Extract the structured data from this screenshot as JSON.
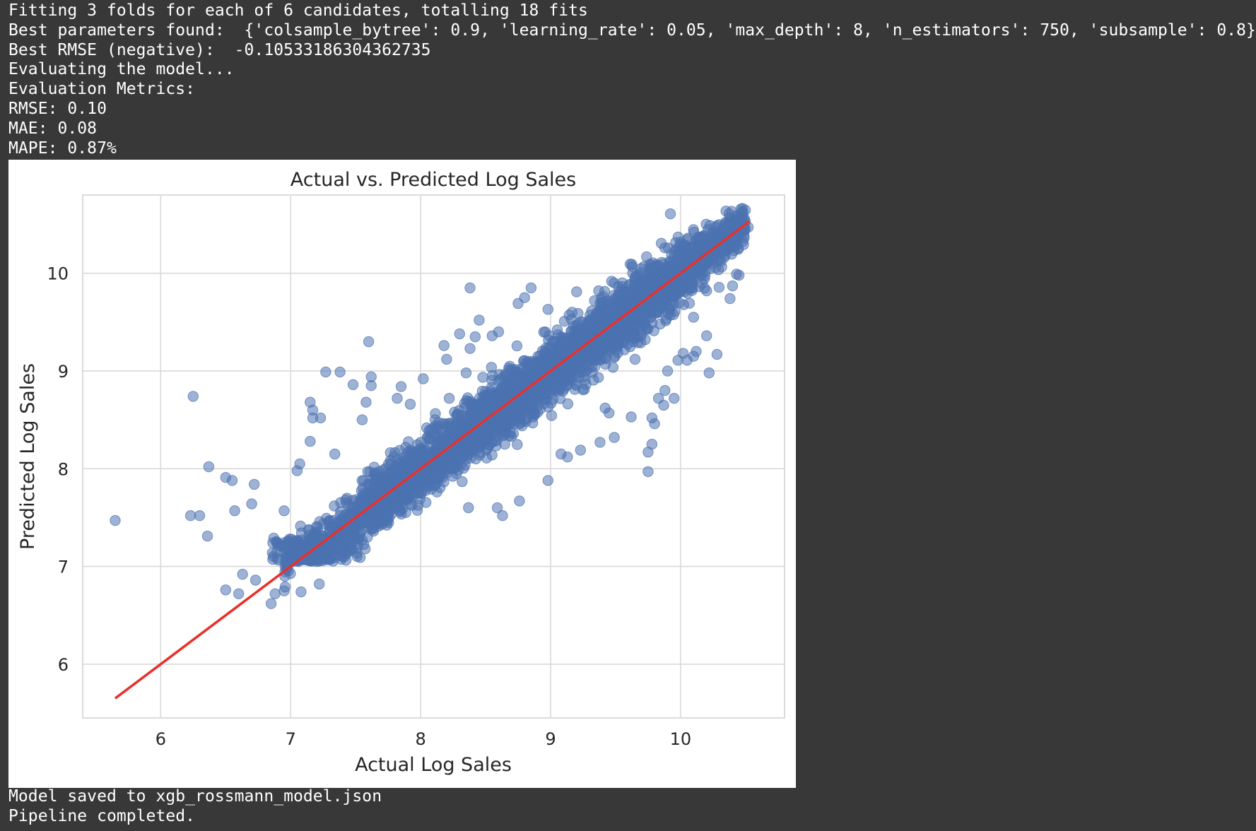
{
  "console": {
    "lines_top": [
      "Fitting 3 folds for each of 6 candidates, totalling 18 fits",
      "Best parameters found:  {'colsample_bytree': 0.9, 'learning_rate': 0.05, 'max_depth': 8, 'n_estimators': 750, 'subsample': 0.8}",
      "Best RMSE (negative):  -0.10533186304362735",
      "Evaluating the model...",
      "Evaluation Metrics:",
      "RMSE: 0.10",
      "MAE: 0.08",
      "MAPE: 0.87%"
    ],
    "lines_bottom": [
      "Model saved to xgb_rossmann_model.json",
      "Pipeline completed."
    ]
  },
  "colors": {
    "background": "#383838",
    "text": "#ffffff",
    "point": "#4c72b0",
    "reference_line": "#e8312d",
    "grid": "#d9d9d9"
  },
  "chart_data": {
    "type": "scatter",
    "title": "Actual vs. Predicted Log Sales",
    "xlabel": "Actual Log Sales",
    "ylabel": "Predicted Log Sales",
    "xlim": [
      5.4,
      10.8
    ],
    "ylim": [
      5.45,
      10.8
    ],
    "xticks": [
      6,
      7,
      8,
      9,
      10
    ],
    "yticks": [
      6,
      7,
      8,
      9,
      10
    ],
    "grid": true,
    "reference_line": {
      "x": [
        5.65,
        10.53
      ],
      "y": [
        5.65,
        10.53
      ]
    },
    "outliers": [
      [
        5.65,
        7.47
      ],
      [
        6.25,
        8.74
      ],
      [
        6.37,
        8.02
      ],
      [
        6.23,
        7.52
      ],
      [
        6.3,
        7.52
      ],
      [
        6.36,
        7.31
      ],
      [
        6.5,
        7.91
      ],
      [
        6.55,
        7.88
      ],
      [
        6.57,
        7.57
      ],
      [
        6.7,
        7.64
      ],
      [
        6.72,
        7.84
      ],
      [
        6.5,
        6.76
      ],
      [
        6.6,
        6.72
      ],
      [
        6.63,
        6.92
      ],
      [
        6.73,
        6.86
      ],
      [
        6.85,
        6.62
      ],
      [
        6.88,
        6.72
      ],
      [
        6.95,
        6.75
      ],
      [
        7.08,
        6.74
      ],
      [
        7.22,
        6.82
      ],
      [
        7.07,
        8.05
      ],
      [
        7.05,
        7.98
      ],
      [
        7.15,
        8.28
      ],
      [
        7.15,
        8.68
      ],
      [
        7.17,
        8.6
      ],
      [
        7.17,
        8.52
      ],
      [
        7.23,
        8.52
      ],
      [
        7.27,
        8.99
      ],
      [
        7.38,
        8.99
      ],
      [
        7.34,
        8.15
      ],
      [
        6.95,
        7.57
      ],
      [
        7.48,
        8.86
      ],
      [
        7.62,
        8.94
      ],
      [
        7.62,
        8.85
      ],
      [
        7.58,
        8.68
      ],
      [
        7.55,
        8.5
      ],
      [
        7.82,
        8.72
      ],
      [
        7.85,
        8.84
      ],
      [
        7.92,
        8.66
      ],
      [
        8.02,
        8.92
      ],
      [
        8.22,
        8.72
      ],
      [
        8.35,
        8.98
      ],
      [
        8.2,
        9.12
      ],
      [
        7.6,
        9.3
      ],
      [
        8.38,
        9.23
      ],
      [
        8.18,
        9.26
      ],
      [
        8.3,
        9.38
      ],
      [
        8.45,
        9.52
      ],
      [
        8.38,
        9.85
      ],
      [
        8.42,
        9.35
      ],
      [
        8.55,
        9.36
      ],
      [
        8.6,
        9.4
      ],
      [
        8.75,
        9.69
      ],
      [
        8.85,
        9.85
      ],
      [
        8.8,
        9.75
      ],
      [
        8.98,
        9.63
      ],
      [
        9.2,
        9.81
      ],
      [
        9.37,
        9.82
      ],
      [
        8.59,
        7.6
      ],
      [
        8.63,
        7.52
      ],
      [
        8.76,
        7.67
      ],
      [
        8.98,
        7.88
      ],
      [
        9.08,
        8.15
      ],
      [
        9.13,
        8.12
      ],
      [
        9.23,
        8.19
      ],
      [
        9.38,
        8.27
      ],
      [
        9.49,
        8.32
      ],
      [
        9.45,
        8.57
      ],
      [
        9.42,
        8.62
      ],
      [
        9.62,
        8.53
      ],
      [
        9.75,
        8.17
      ],
      [
        9.75,
        7.97
      ],
      [
        9.78,
        8.25
      ],
      [
        9.78,
        8.52
      ],
      [
        9.8,
        8.46
      ],
      [
        9.83,
        8.72
      ],
      [
        9.87,
        8.65
      ],
      [
        9.95,
        8.72
      ],
      [
        9.88,
        8.8
      ],
      [
        9.9,
        9.0
      ],
      [
        9.98,
        9.11
      ],
      [
        10.05,
        9.11
      ],
      [
        10.02,
        9.18
      ],
      [
        10.12,
        9.2
      ],
      [
        10.1,
        9.15
      ],
      [
        10.2,
        9.36
      ],
      [
        10.28,
        9.17
      ],
      [
        10.22,
        8.98
      ],
      [
        10.38,
        9.74
      ],
      [
        10.4,
        9.87
      ],
      [
        10.45,
        9.98
      ],
      [
        10.43,
        9.99
      ],
      [
        10.52,
        10.47
      ],
      [
        10.47,
        10.45
      ],
      [
        10.0,
        10.32
      ],
      [
        10.15,
        10.3
      ],
      [
        10.3,
        10.4
      ],
      [
        10.2,
        9.82
      ],
      [
        10.1,
        9.55
      ],
      [
        9.6,
        9.58
      ],
      [
        9.7,
        9.42
      ],
      [
        9.65,
        9.12
      ]
    ],
    "band": {
      "x_range": [
        6.95,
        10.5
      ],
      "predicted_center": "actual",
      "predicted_spread": 0.42
    }
  }
}
